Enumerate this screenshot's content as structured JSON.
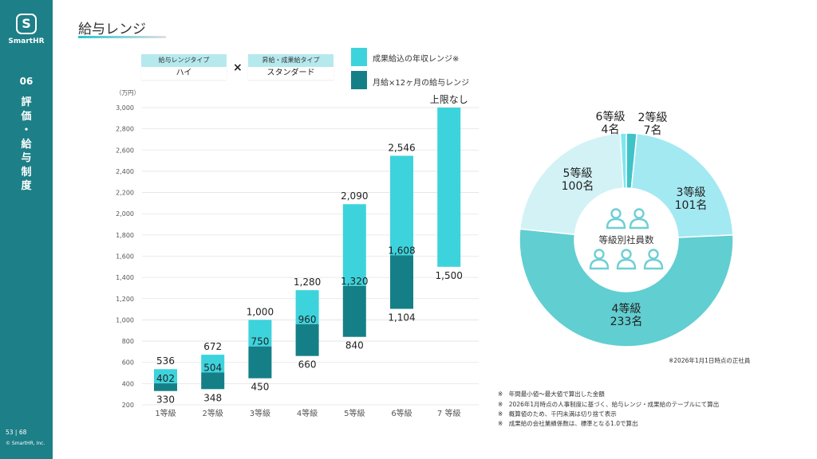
{
  "sidebar": {
    "logo_glyph": "S",
    "logo_text": "SmartHR",
    "section_number": "06",
    "section_title_chars": [
      "評",
      "価",
      "・",
      "給",
      "与",
      "制",
      "度"
    ],
    "pager": "53 | 68",
    "copyright": "© SmartHR, Inc."
  },
  "header": {
    "title": "給与レンジ"
  },
  "options": {
    "salary_range_type_label": "給与レンジタイプ",
    "salary_range_type_value": "ハイ",
    "times_symbol": "×",
    "raise_type_label": "昇給・成果給タイプ",
    "raise_type_value": "スタンダード"
  },
  "legend": [
    {
      "label": "成果給込の年収レンジ※",
      "color": "#3dd3dc"
    },
    {
      "label": "月給×12ヶ月の給与レンジ",
      "color": "#157f87"
    }
  ],
  "colors": {
    "sidebar": "#1d7f87",
    "light_teal": "#3dd3dc",
    "dark_teal": "#157f87"
  },
  "chart_data": [
    {
      "type": "bar",
      "unit_label": "（万円）",
      "ylim": [
        200,
        3000
      ],
      "yticks": [
        "200",
        "400",
        "600",
        "800",
        "1,000",
        "1,200",
        "1,400",
        "1,600",
        "1,800",
        "2,000",
        "2,200",
        "2,400",
        "2,600",
        "2,800",
        "3,000"
      ],
      "grid": true,
      "categories": [
        "1等級",
        "2等級",
        "3等級",
        "4等級",
        "5等級",
        "6等級",
        "7 等級"
      ],
      "series": [
        {
          "name": "月給×12ヶ月の給与レンジ",
          "ranges": [
            [
              330,
              402
            ],
            [
              348,
              504
            ],
            [
              450,
              750
            ],
            [
              660,
              960
            ],
            [
              840,
              1320
            ],
            [
              1104,
              1608
            ],
            null
          ]
        },
        {
          "name": "成果給込の年収レンジ※",
          "ranges": [
            [
              402,
              536
            ],
            [
              504,
              672
            ],
            [
              750,
              1000
            ],
            [
              960,
              1280
            ],
            [
              1320,
              2090
            ],
            [
              1608,
              2546
            ],
            [
              1500,
              3000
            ]
          ]
        }
      ],
      "labels_top": [
        "536",
        "672",
        "1,000",
        "1,280",
        "2,090",
        "2,546",
        "上限なし"
      ],
      "labels_mid": [
        "402",
        "504",
        "750",
        "960",
        "1,320",
        "1,608",
        ""
      ],
      "labels_bottom": [
        "330",
        "348",
        "450",
        "660",
        "840",
        "1,104",
        "1,500"
      ]
    },
    {
      "type": "pie",
      "center_label": "等級別社員数",
      "slices": [
        {
          "grade": "2等級",
          "count": "7名",
          "value": 7,
          "color": "#3fc3c7"
        },
        {
          "grade": "3等級",
          "count": "101名",
          "value": 101,
          "color": "#a3e9f2"
        },
        {
          "grade": "4等級",
          "count": "233名",
          "value": 233,
          "color": "#61ced1"
        },
        {
          "grade": "5等級",
          "count": "100名",
          "value": 100,
          "color": "#d3f2f6"
        },
        {
          "grade": "6等級",
          "count": "4名",
          "value": 4,
          "color": "#7fe6f0"
        }
      ]
    }
  ],
  "notes": {
    "star_note": "※2026年1月1日時点の正社員",
    "bottom": [
      "※　年間最小値〜最大値で算出した金額",
      "※　2026年1月時点の人事制度に基づく、給与レンジ・成果給のテーブルにて算出",
      "※　概算値のため、千円未満は切り捨て表示",
      "※　成果給の会社業績係数は、標準となる1.0で算出"
    ]
  }
}
